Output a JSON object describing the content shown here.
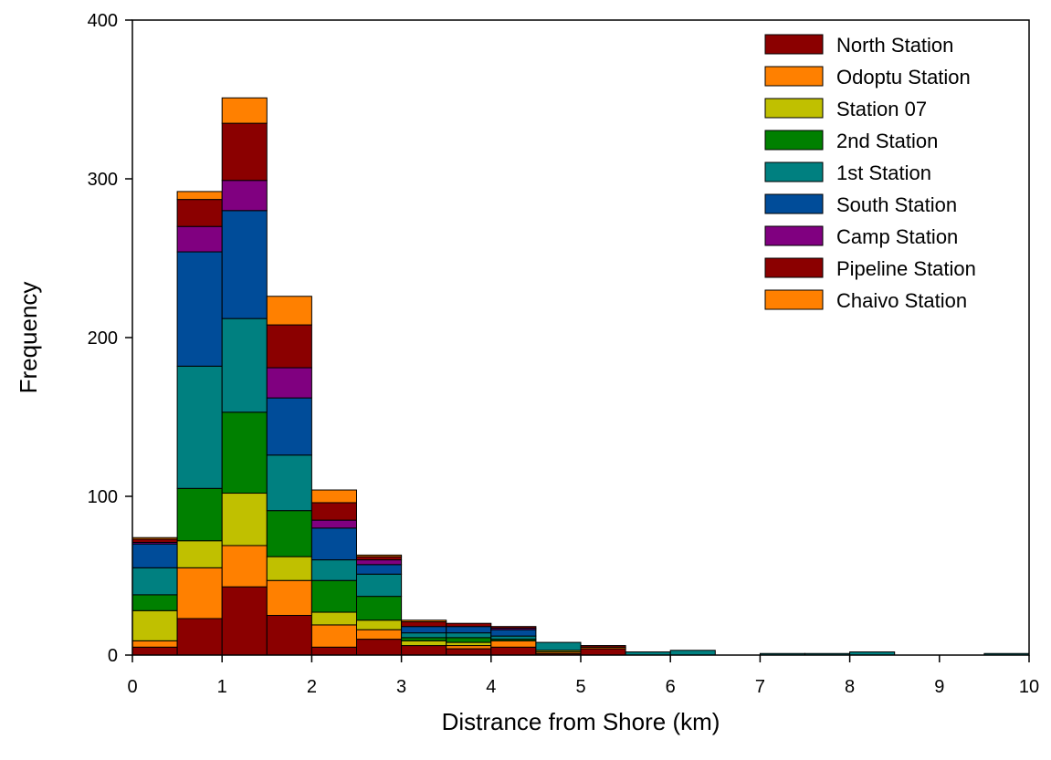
{
  "chart_data": {
    "type": "bar",
    "stacked": true,
    "title": "",
    "xlabel": "Distrance from Shore (km)",
    "ylabel": "Frequency",
    "xlim": [
      0,
      10
    ],
    "ylim": [
      0,
      400
    ],
    "xticks": [
      "0",
      "1",
      "2",
      "3",
      "4",
      "5",
      "6",
      "7",
      "8",
      "9",
      "10"
    ],
    "yticks": [
      "0",
      "100",
      "200",
      "300",
      "400"
    ],
    "bin_width": 0.5,
    "x": [
      0,
      0.5,
      1,
      1.5,
      2,
      2.5,
      3,
      3.5,
      4,
      4.5,
      5,
      5.5,
      6,
      6.5,
      7,
      7.5,
      8,
      8.5,
      9,
      9.5
    ],
    "legend_position": "top-right",
    "grid": false,
    "series": [
      {
        "name": "North Station",
        "color": "#8b0000",
        "values": [
          5,
          23,
          43,
          25,
          5,
          10,
          6,
          4,
          5,
          1,
          4,
          0,
          0,
          0,
          0,
          0,
          0,
          0,
          0,
          0
        ]
      },
      {
        "name": "Odoptu Station",
        "color": "#ff8000",
        "values": [
          4,
          32,
          26,
          22,
          14,
          6,
          0,
          2,
          4,
          1,
          1,
          0,
          0,
          0,
          0,
          0,
          0,
          0,
          0,
          0
        ]
      },
      {
        "name": "Station 07",
        "color": "#c0c000",
        "values": [
          19,
          17,
          33,
          15,
          8,
          6,
          3,
          2,
          0,
          1,
          0,
          0,
          0,
          0,
          0,
          0,
          0,
          0,
          0,
          0
        ]
      },
      {
        "name": "2nd Station",
        "color": "#008000",
        "values": [
          10,
          33,
          51,
          29,
          20,
          15,
          2,
          3,
          1,
          0,
          0,
          0,
          0,
          0,
          0,
          0,
          0,
          0,
          0,
          0
        ]
      },
      {
        "name": "1st Station",
        "color": "#008080",
        "values": [
          17,
          77,
          59,
          35,
          13,
          14,
          3,
          3,
          2,
          5,
          0,
          2,
          3,
          0,
          1,
          1,
          2,
          0,
          0,
          1
        ]
      },
      {
        "name": "South Station",
        "color": "#004c99",
        "values": [
          15,
          72,
          68,
          36,
          20,
          6,
          4,
          4,
          4,
          0,
          0,
          0,
          0,
          0,
          0,
          0,
          0,
          0,
          0,
          0
        ]
      },
      {
        "name": "Camp Station",
        "color": "#800080",
        "values": [
          1,
          16,
          19,
          19,
          5,
          3,
          0,
          0,
          1,
          0,
          0,
          0,
          0,
          0,
          0,
          0,
          0,
          0,
          0,
          0
        ]
      },
      {
        "name": "Pipeline Station",
        "color": "#8b0000",
        "values": [
          2,
          17,
          36,
          27,
          11,
          2,
          3,
          2,
          1,
          0,
          1,
          0,
          0,
          0,
          0,
          0,
          0,
          0,
          0,
          0
        ]
      },
      {
        "name": "Chaivo Station",
        "color": "#ff8000",
        "values": [
          1,
          5,
          16,
          18,
          8,
          1,
          1,
          0,
          0,
          0,
          0,
          0,
          0,
          0,
          0,
          0,
          0,
          0,
          0,
          0
        ]
      }
    ]
  }
}
